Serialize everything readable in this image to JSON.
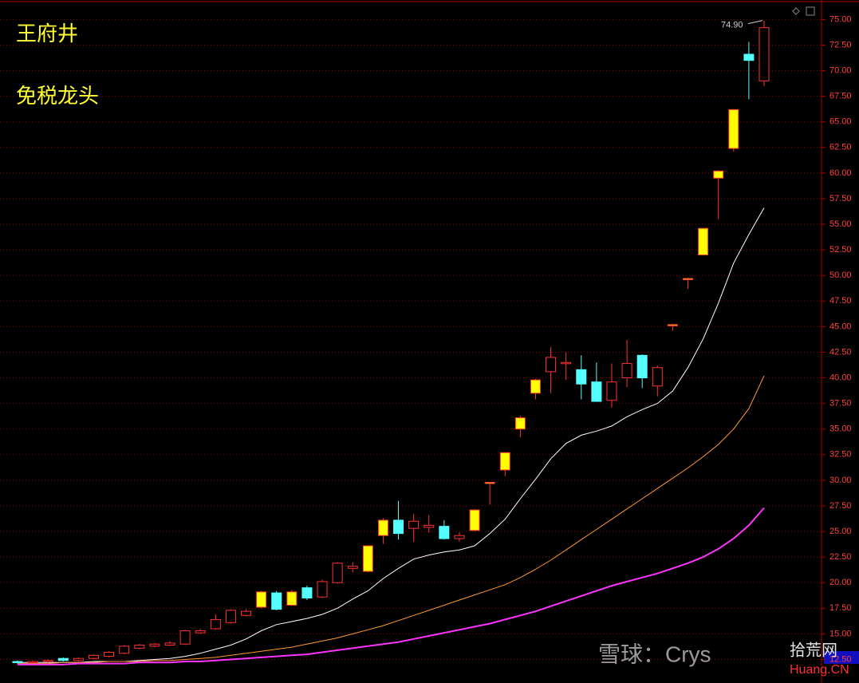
{
  "chart_data": {
    "type": "candlestick",
    "title": "王府井",
    "subtitle": "免税龙头",
    "max_label": {
      "value": 74.9,
      "label": "74.90"
    },
    "watermark": "雪球：Crys",
    "logo_text": "拾荒网",
    "logo_url": "Huang.CN",
    "up_color": "#ff3232",
    "down_color": "#54ffff",
    "grid_color": "#8b0000",
    "open": [
      12.3,
      12.2,
      12.3,
      12.6,
      12.4,
      12.6,
      12.8,
      13.1,
      13.6,
      13.8,
      13.9,
      14.0,
      15.1,
      15.5,
      16.1,
      16.8,
      17.6,
      19.0,
      17.8,
      19.5,
      18.6,
      20.0,
      21.4,
      21.1,
      24.6,
      26.1,
      25.3,
      25.4,
      25.5,
      24.3,
      25.1,
      29.7,
      31.0,
      35.0,
      38.5,
      40.6,
      41.4,
      40.8,
      39.6,
      37.8,
      40.0,
      42.2,
      39.2,
      45.1,
      49.6,
      52.0,
      59.5,
      62.4,
      71.6,
      69.0
    ],
    "high": [
      12.4,
      12.4,
      12.5,
      12.7,
      12.7,
      13.0,
      13.3,
      13.9,
      14.0,
      14.1,
      14.3,
      15.4,
      15.5,
      16.9,
      17.4,
      17.4,
      19.2,
      19.2,
      19.3,
      19.7,
      20.3,
      22.0,
      22.0,
      23.6,
      26.3,
      28.0,
      26.7,
      26.6,
      26.1,
      24.9,
      27.2,
      29.8,
      32.7,
      36.3,
      39.9,
      43.0,
      42.5,
      42.2,
      41.5,
      41.4,
      43.7,
      42.3,
      41.2,
      45.3,
      49.8,
      54.6,
      60.3,
      66.2,
      72.8,
      74.9
    ],
    "low": [
      12.1,
      12.1,
      12.2,
      12.3,
      12.3,
      12.5,
      12.7,
      13.0,
      13.5,
      13.7,
      13.8,
      13.9,
      15.0,
      15.4,
      16.0,
      16.7,
      17.5,
      17.3,
      17.7,
      18.3,
      18.5,
      19.9,
      21.0,
      21.0,
      23.8,
      24.2,
      24.0,
      24.9,
      24.2,
      24.0,
      25.0,
      27.6,
      30.4,
      34.2,
      37.9,
      38.5,
      39.8,
      37.9,
      37.7,
      37.1,
      39.1,
      39.0,
      38.2,
      44.6,
      48.7,
      52.0,
      55.5,
      62.1,
      67.2,
      68.5
    ],
    "close": [
      12.2,
      12.3,
      12.4,
      12.4,
      12.6,
      12.9,
      13.2,
      13.8,
      13.9,
      14.0,
      14.1,
      15.3,
      15.3,
      16.4,
      17.3,
      17.2,
      19.1,
      17.4,
      19.1,
      18.5,
      20.1,
      21.9,
      21.6,
      23.6,
      26.1,
      24.8,
      26.0,
      25.6,
      24.3,
      24.6,
      27.1,
      29.8,
      32.7,
      36.1,
      39.8,
      42.0,
      41.5,
      39.4,
      37.7,
      39.6,
      41.4,
      40.0,
      41.0,
      45.2,
      49.7,
      54.6,
      60.2,
      66.2,
      71.0,
      74.2
    ],
    "fills": [
      "#54ffff",
      "#000000",
      "#000000",
      "#54ffff",
      "#000000",
      "#000000",
      "#000000",
      "#000000",
      "#000000",
      "#000000",
      "#000000",
      "#000000",
      "#000000",
      "#000000",
      "#000000",
      "#000000",
      "#ffff00",
      "#54ffff",
      "#ffff00",
      "#54ffff",
      "#000000",
      "#000000",
      "#000000",
      "#ffff00",
      "#ffff00",
      "#54ffff",
      "#000000",
      "#000000",
      "#54ffff",
      "#000000",
      "#ffff00",
      "#ffff00",
      "#ffff00",
      "#ffff00",
      "#ffff00",
      "#000000",
      "#000000",
      "#54ffff",
      "#54ffff",
      "#000000",
      "#000000",
      "#54ffff",
      "#000000",
      "#ffff00",
      "#ffff00",
      "#ffff00",
      "#ffff00",
      "#ffff00",
      "#54ffff",
      "#000000"
    ],
    "series": [
      {
        "color": "#ffffff",
        "values": [
          12.2,
          12.2,
          12.2,
          12.2,
          12.2,
          12.3,
          12.3,
          12.3,
          12.4,
          12.5,
          12.6,
          12.8,
          13.1,
          13.5,
          13.9,
          14.5,
          15.3,
          15.9,
          16.2,
          16.5,
          16.9,
          17.5,
          18.4,
          19.2,
          20.4,
          21.4,
          22.3,
          22.7,
          23.0,
          23.2,
          23.6,
          24.8,
          26.2,
          28.2,
          30.1,
          32.1,
          33.6,
          34.4,
          34.8,
          35.3,
          36.2,
          36.9,
          37.5,
          38.7,
          41.0,
          43.8,
          47.3,
          51.2,
          54.0,
          56.6
        ]
      },
      {
        "color": "#ff9933",
        "values": [
          12.1,
          12.1,
          12.1,
          12.2,
          12.2,
          12.2,
          12.3,
          12.3,
          12.3,
          12.4,
          12.4,
          12.5,
          12.6,
          12.7,
          12.9,
          13.1,
          13.3,
          13.5,
          13.7,
          14.0,
          14.3,
          14.6,
          15.0,
          15.4,
          15.8,
          16.3,
          16.8,
          17.3,
          17.8,
          18.3,
          18.8,
          19.3,
          19.8,
          20.5,
          21.3,
          22.2,
          23.2,
          24.2,
          25.2,
          26.2,
          27.2,
          28.2,
          29.2,
          30.2,
          31.2,
          32.3,
          33.5,
          35.0,
          37.0,
          40.2
        ]
      },
      {
        "color": "#ff33ff",
        "values": [
          12.0,
          12.0,
          12.0,
          12.0,
          12.1,
          12.1,
          12.1,
          12.1,
          12.2,
          12.2,
          12.2,
          12.3,
          12.3,
          12.4,
          12.5,
          12.6,
          12.7,
          12.8,
          12.9,
          13.0,
          13.2,
          13.4,
          13.6,
          13.8,
          14.0,
          14.2,
          14.5,
          14.8,
          15.1,
          15.4,
          15.7,
          16.0,
          16.4,
          16.8,
          17.2,
          17.7,
          18.2,
          18.7,
          19.2,
          19.7,
          20.1,
          20.5,
          20.9,
          21.4,
          21.9,
          22.5,
          23.3,
          24.3,
          25.6,
          27.3
        ]
      }
    ],
    "ylim": [
      10.2,
      76.9
    ],
    "yticks": [
      {
        "value": 12.5,
        "label": "12.50"
      },
      {
        "value": 15,
        "label": "15.00"
      },
      {
        "value": 17.5,
        "label": "17.50"
      },
      {
        "value": 20,
        "label": "20.00"
      },
      {
        "value": 22.5,
        "label": "22.50"
      },
      {
        "value": 25,
        "label": "25.00"
      },
      {
        "value": 27.5,
        "label": "27.50"
      },
      {
        "value": 30,
        "label": "30.00"
      },
      {
        "value": 32.5,
        "label": "32.50"
      },
      {
        "value": 35,
        "label": "35.00"
      },
      {
        "value": 37.5,
        "label": "37.50"
      },
      {
        "value": 40,
        "label": "40.00"
      },
      {
        "value": 42.5,
        "label": "42.50"
      },
      {
        "value": 45,
        "label": "45.00"
      },
      {
        "value": 47.5,
        "label": "47.50"
      },
      {
        "value": 50,
        "label": "50.00"
      },
      {
        "value": 52.5,
        "label": "52.50"
      },
      {
        "value": 55,
        "label": "55.00"
      },
      {
        "value": 57.5,
        "label": "57.50"
      },
      {
        "value": 60,
        "label": "60.00"
      },
      {
        "value": 62.5,
        "label": "62.50"
      },
      {
        "value": 65,
        "label": "65.00"
      },
      {
        "value": 67.5,
        "label": "67.50"
      },
      {
        "value": 70,
        "label": "70.00"
      },
      {
        "value": 72.5,
        "label": "72.50"
      },
      {
        "value": 75,
        "label": "75.00"
      }
    ],
    "grid": true
  }
}
